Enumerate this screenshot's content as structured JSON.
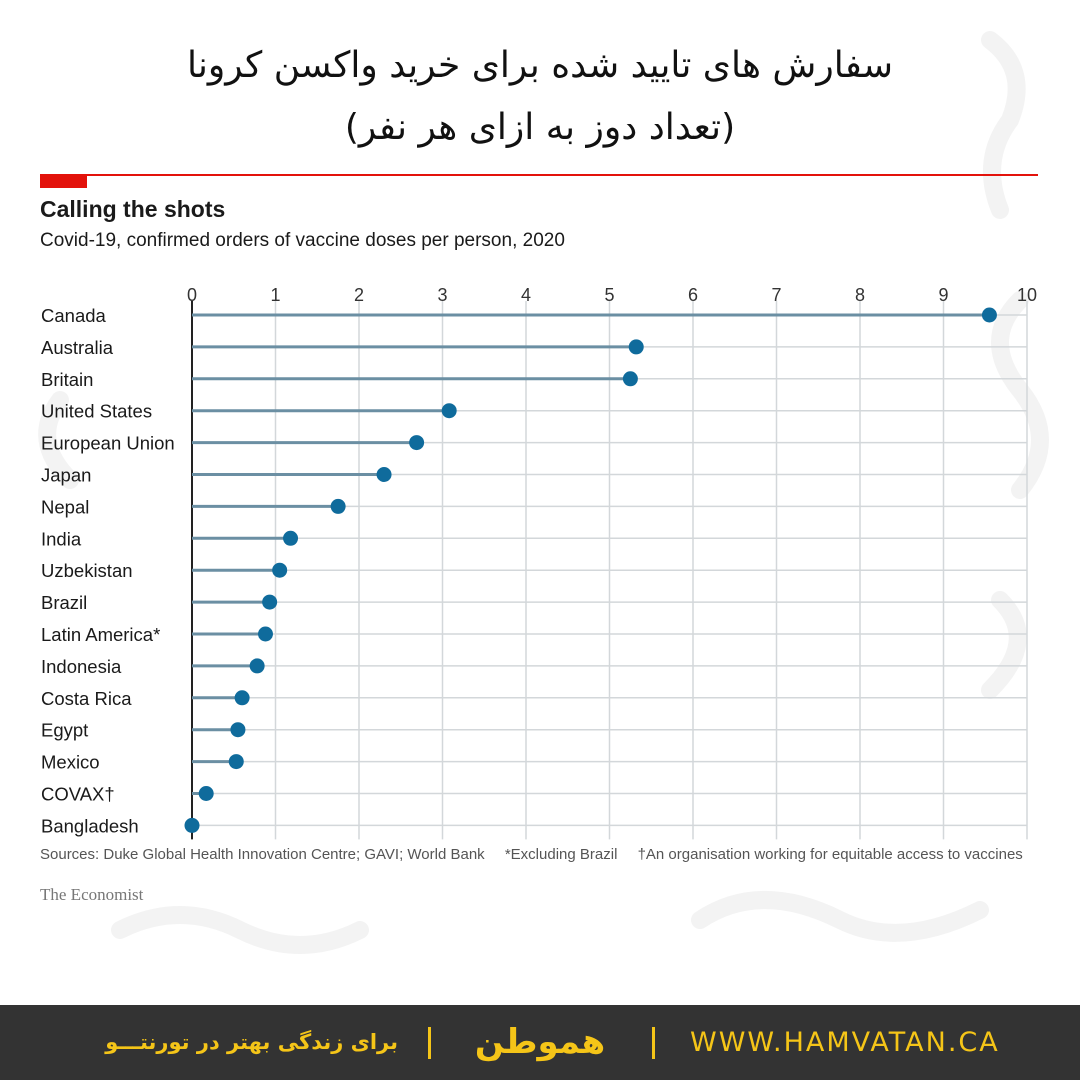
{
  "header": {
    "title_fa_line1": "سفارش های تایید شده برای خرید واکسن کرونا",
    "title_fa_line2": "(تعداد دوز به ازای هر نفر)"
  },
  "colors": {
    "accent": "#e3120b",
    "stem": "#6b8fa3",
    "dot": "#0f6b9c",
    "grid": "#d3d7da",
    "footer_bg": "#333333",
    "footer_text": "#f5c518"
  },
  "chart_data": {
    "type": "dot",
    "title": "Calling the shots",
    "subtitle": "Covid-19, confirmed orders of vaccine doses per person, 2020",
    "xlabel": "",
    "ylabel": "",
    "xlim": [
      0,
      10
    ],
    "xticks": [
      "0",
      "1",
      "2",
      "3",
      "4",
      "5",
      "6",
      "7",
      "8",
      "9",
      "10"
    ],
    "grid": true,
    "categories": [
      "Canada",
      "Australia",
      "Britain",
      "United States",
      "European Union",
      "Japan",
      "Nepal",
      "India",
      "Uzbekistan",
      "Brazil",
      "Latin America*",
      "Indonesia",
      "Costa Rica",
      "Egypt",
      "Mexico",
      "COVAX†",
      "Bangladesh"
    ],
    "values": [
      9.55,
      5.32,
      5.25,
      3.08,
      2.69,
      2.3,
      1.75,
      1.18,
      1.05,
      0.93,
      0.88,
      0.78,
      0.6,
      0.55,
      0.53,
      0.17,
      0.0
    ]
  },
  "notes": {
    "sources": "Sources: Duke Global Health Innovation Centre; GAVI; World Bank",
    "footnote_1": "*Excluding Brazil",
    "footnote_2": "†An organisation working for equitable access to vaccines",
    "publisher": "The Economist"
  },
  "footer": {
    "tagline": "برای زندگی بهتر در تورنتـــو",
    "brand": "هموطن",
    "url": "WWW.HAMVATAN.CA"
  }
}
